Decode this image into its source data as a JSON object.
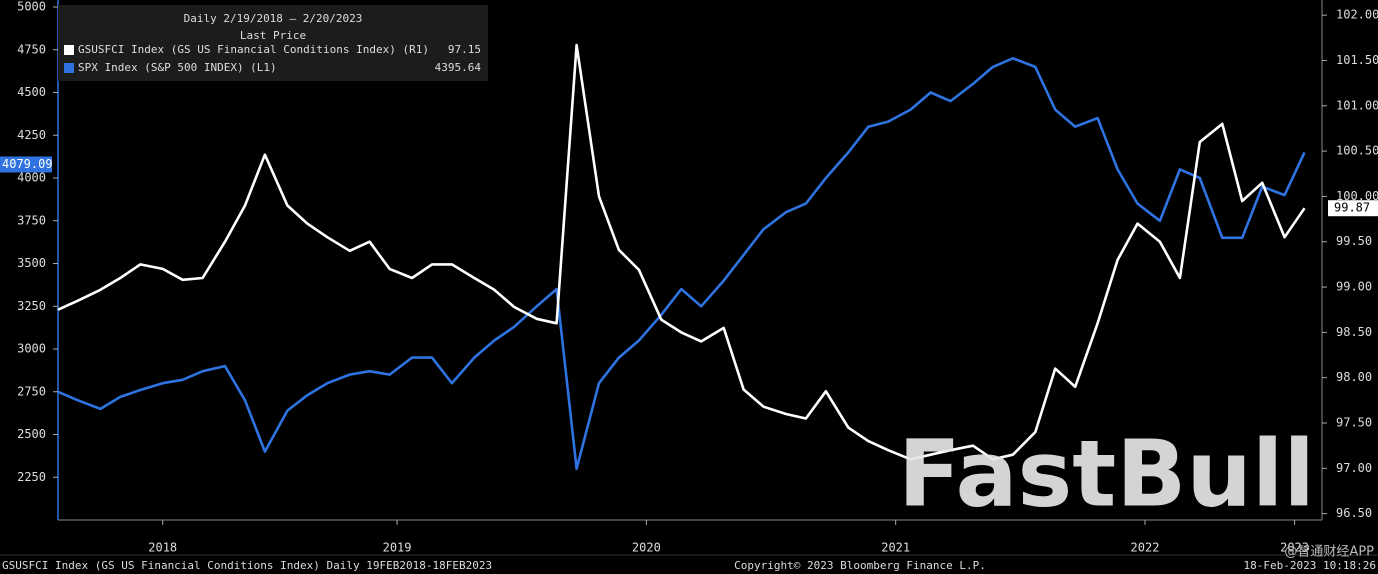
{
  "chart_data": {
    "type": "line",
    "title": "Daily 2/19/2018 – 2/20/2023",
    "subtitle": "Last Price",
    "x": [
      2018.14,
      2018.22,
      2018.31,
      2018.39,
      2018.47,
      2018.56,
      2018.64,
      2018.72,
      2018.81,
      2018.89,
      2018.97,
      2019.06,
      2019.14,
      2019.22,
      2019.31,
      2019.39,
      2019.47,
      2019.56,
      2019.64,
      2019.72,
      2019.81,
      2019.89,
      2019.97,
      2020.06,
      2020.14,
      2020.22,
      2020.31,
      2020.39,
      2020.47,
      2020.56,
      2020.64,
      2020.72,
      2020.81,
      2020.89,
      2020.97,
      2021.06,
      2021.14,
      2021.22,
      2021.31,
      2021.39,
      2021.47,
      2021.56,
      2021.64,
      2021.72,
      2021.81,
      2021.89,
      2021.97,
      2022.06,
      2022.14,
      2022.22,
      2022.31,
      2022.39,
      2022.47,
      2022.56,
      2022.64,
      2022.72,
      2022.81,
      2022.89,
      2022.97,
      2023.06,
      2023.14
    ],
    "xlim": [
      2018.14,
      2023.21
    ],
    "xticks": [
      {
        "value": 2018.56,
        "label": "2018"
      },
      {
        "value": 2019.5,
        "label": "2019"
      },
      {
        "value": 2020.5,
        "label": "2020"
      },
      {
        "value": 2021.5,
        "label": "2021"
      },
      {
        "value": 2022.5,
        "label": "2022"
      },
      {
        "value": 2023.1,
        "label": "2023"
      }
    ],
    "ylim": [
      2000,
      5000
    ],
    "yticks": [
      2250,
      2500,
      2750,
      3000,
      3250,
      3500,
      3750,
      4000,
      4250,
      4500,
      4750,
      5000
    ],
    "y2lim": [
      96.43,
      102.09
    ],
    "y2ticks": [
      {
        "value": 96.5,
        "label": "96.50"
      },
      {
        "value": 97,
        "label": "97.00"
      },
      {
        "value": 97.5,
        "label": "97.50"
      },
      {
        "value": 98,
        "label": "98.00"
      },
      {
        "value": 98.5,
        "label": "98.50"
      },
      {
        "value": 99,
        "label": "99.00"
      },
      {
        "value": 99.5,
        "label": "99.50"
      },
      {
        "value": 100,
        "label": "100.00"
      },
      {
        "value": 100.5,
        "label": "100.50"
      },
      {
        "value": 101,
        "label": "101.00"
      },
      {
        "value": 101.5,
        "label": "101.50"
      },
      {
        "value": 102,
        "label": "102.00"
      }
    ],
    "series": [
      {
        "name": "GSUSFCI Index (GS US Financial Conditions Index)  (R1)",
        "color": "#ffffff",
        "axis": "y2",
        "legend_value": 97.15,
        "axis_label": 99.87,
        "values": [
          98.75,
          98.85,
          98.97,
          99.1,
          99.25,
          99.2,
          99.08,
          99.1,
          99.5,
          99.9,
          100.46,
          99.9,
          99.7,
          99.55,
          99.4,
          99.5,
          99.2,
          99.1,
          99.25,
          99.25,
          99.1,
          98.97,
          98.78,
          98.65,
          98.6,
          101.67,
          100.0,
          99.41,
          99.19,
          98.64,
          98.5,
          98.4,
          98.55,
          97.87,
          97.68,
          97.6,
          97.55,
          97.85,
          97.45,
          97.3,
          97.2,
          97.1,
          97.15,
          97.2,
          97.25,
          97.1,
          97.15,
          97.4,
          98.1,
          97.9,
          98.6,
          99.3,
          99.7,
          99.5,
          99.1,
          100.6,
          100.8,
          99.95,
          100.15,
          99.55,
          99.87
        ]
      },
      {
        "name": "SPX Index (S&P 500 INDEX)  (L1)",
        "color": "#2f73e0",
        "legend_value": 4395.64,
        "axis_label": 4079.09,
        "values": [
          2750,
          2700,
          2650,
          2720,
          2760,
          2800,
          2820,
          2870,
          2900,
          2700,
          2400,
          2640,
          2730,
          2800,
          2850,
          2870,
          2850,
          2950,
          2950,
          2800,
          2950,
          3050,
          3130,
          3250,
          3350,
          2300,
          2800,
          2950,
          3050,
          3200,
          3350,
          3250,
          3400,
          3550,
          3700,
          3800,
          3850,
          4000,
          4150,
          4300,
          4330,
          4400,
          4500,
          4450,
          4550,
          4650,
          4700,
          4650,
          4400,
          4300,
          4350,
          4050,
          3850,
          3750,
          4050,
          4000,
          3650,
          3650,
          3950,
          3900,
          4150
        ]
      }
    ],
    "footer_left": "GSUSFCI Index (GS US Financial Conditions Index)  Daily 19FEB2018-18FEB2023",
    "footer_center": "Copyright© 2023 Bloomberg Finance L.P.",
    "footer_right": "18-Feb-2023 10:18:26",
    "watermark": "FastBull",
    "watermark_small": "@智通财经APP"
  }
}
